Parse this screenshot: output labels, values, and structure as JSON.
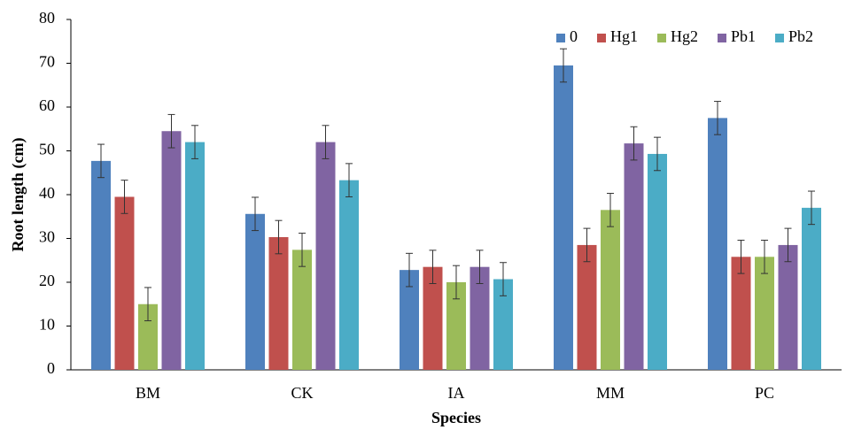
{
  "chart_data": {
    "type": "bar",
    "x_label": "Species",
    "y_label": "Root length (cm)",
    "categories": [
      "BM",
      "CK",
      "IA",
      "MM",
      "PC"
    ],
    "series": [
      {
        "name": "0",
        "color": "#4f81bd",
        "values": [
          47.7,
          35.6,
          22.8,
          69.5,
          57.5
        ],
        "errors": [
          3.8,
          3.8,
          3.8,
          3.8,
          3.8
        ]
      },
      {
        "name": "Hg1",
        "color": "#c0504d",
        "values": [
          39.5,
          30.3,
          23.5,
          28.5,
          25.8
        ],
        "errors": [
          3.8,
          3.8,
          3.8,
          3.8,
          3.8
        ]
      },
      {
        "name": "Hg2",
        "color": "#9bbb59",
        "values": [
          15,
          27.4,
          20,
          36.5,
          25.8
        ],
        "errors": [
          3.8,
          3.8,
          3.8,
          3.8,
          3.8
        ]
      },
      {
        "name": "Pb1",
        "color": "#8064a2",
        "values": [
          54.5,
          52,
          23.5,
          51.7,
          28.5
        ],
        "errors": [
          3.8,
          3.8,
          3.8,
          3.8,
          3.8
        ]
      },
      {
        "name": "Pb2",
        "color": "#4bacc6",
        "values": [
          52,
          43.3,
          20.7,
          49.3,
          37
        ],
        "errors": [
          3.8,
          3.8,
          3.8,
          3.8,
          3.8
        ]
      }
    ],
    "ylim": [
      0,
      80
    ],
    "yticks": [
      0,
      10,
      20,
      30,
      40,
      50,
      60,
      70,
      80
    ],
    "grid": false,
    "legend": "top-right"
  }
}
